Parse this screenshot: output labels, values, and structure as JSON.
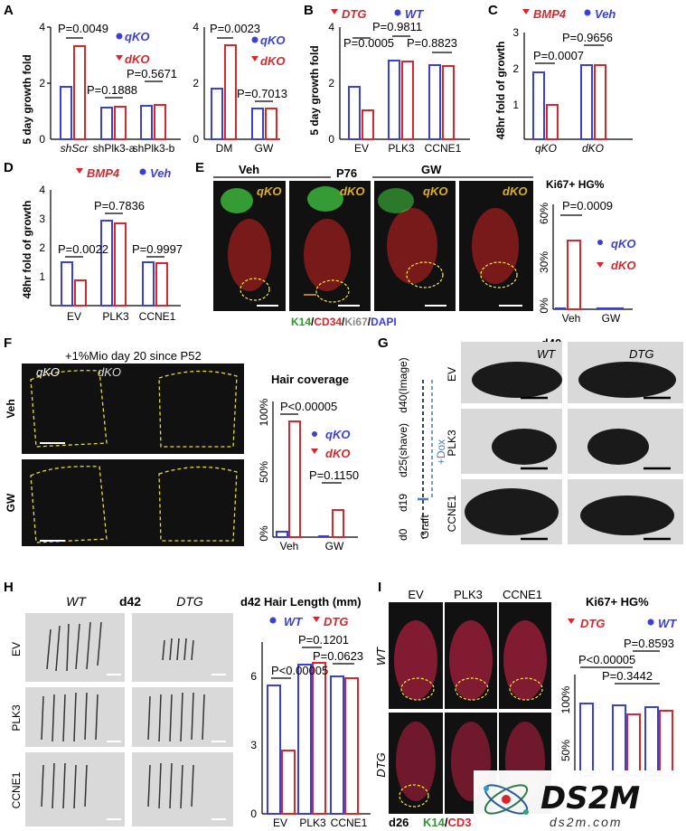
{
  "panels": {
    "A": {
      "label": "A",
      "ylabel": "5 day growth fold",
      "left": {
        "categories": [
          "shScr",
          "shPlk3-a",
          "shPlk3-b"
        ],
        "pvals": [
          "P=0.0049",
          "P=0.1888",
          "P=0.5671"
        ]
      },
      "right": {
        "categories": [
          "DM",
          "GW"
        ],
        "pvals": [
          "P=0.0023",
          "P=0.7013"
        ]
      },
      "legend": [
        "qKO",
        "dKO"
      ]
    },
    "B": {
      "label": "B",
      "ylabel": "5 day growth fold",
      "categories": [
        "EV",
        "PLK3",
        "CCNE1"
      ],
      "pvals": [
        "P=0.0005",
        "P=0.9811",
        "P=0.8823"
      ],
      "legend": [
        "DTG",
        "WT"
      ]
    },
    "C": {
      "label": "C",
      "ylabel": "48hr fold of growth",
      "categories": [
        "qKO",
        "dKO"
      ],
      "pvals": [
        "P=0.0007",
        "P=0.9656"
      ],
      "legend": [
        "BMP4",
        "Veh"
      ]
    },
    "D": {
      "label": "D",
      "ylabel": "48hr fold of growth",
      "categories": [
        "EV",
        "PLK3",
        "CCNE1"
      ],
      "pvals": [
        "P=0.0022",
        "P=0.7836",
        "P=0.9997"
      ],
      "legend": [
        "BMP4",
        "Veh"
      ]
    },
    "E": {
      "label": "E",
      "groups": [
        "Veh",
        "GW"
      ],
      "age": "P76",
      "tile_labels": [
        "qKO",
        "dKO",
        "qKO",
        "dKO"
      ],
      "stain": {
        "k14": "K14",
        "cd34": "CD34",
        "ki67": "Ki67",
        "dapi": "DAPI"
      },
      "chart_title": "Ki67+ HG%",
      "pval": "P=0.0009",
      "yticks": [
        "60%",
        "30%",
        "0%"
      ],
      "categories": [
        "Veh",
        "GW"
      ],
      "legend": [
        "qKO",
        "dKO"
      ]
    },
    "F": {
      "label": "F",
      "title": "+1%Mio day 20 since P52",
      "col_labels": [
        "qKO",
        "dKO"
      ],
      "row_labels": [
        "Veh",
        "GW"
      ],
      "chart_title": "Hair coverage",
      "pvals": [
        "P<0.00005",
        "P=0.1150"
      ],
      "yticks": [
        "100%",
        "50%",
        "0%"
      ],
      "categories": [
        "Veh",
        "GW"
      ],
      "legend": [
        "qKO",
        "dKO"
      ]
    },
    "G": {
      "label": "G",
      "title": "d40",
      "col_labels": [
        "WT",
        "DTG"
      ],
      "row_labels": [
        "EV",
        "PLK3",
        "CCNE1"
      ],
      "timeline": [
        "d0",
        "d19",
        "d25(shave)",
        "d40(Image)"
      ],
      "graft": "Graft",
      "dox": "+Dox"
    },
    "H": {
      "label": "H",
      "title": "d42",
      "col_labels": [
        "WT",
        "DTG"
      ],
      "row_labels": [
        "EV",
        "PLK3",
        "CCNE1"
      ],
      "chart_title": "d42 Hair Length (mm)",
      "legend": [
        "WT",
        "DTG"
      ],
      "pvals": [
        "P<0.00005",
        "P=0.1201",
        "P=0.0623"
      ],
      "yticks": [
        "6",
        "3",
        "0"
      ],
      "categories": [
        "EV",
        "PLK3",
        "CCNE1"
      ]
    },
    "I": {
      "label": "I",
      "col_labels": [
        "EV",
        "PLK3",
        "CCNE1"
      ],
      "row_labels": [
        "WT",
        "DTG"
      ],
      "day": "d26",
      "stain": {
        "k14": "K14",
        "cd34": "CD3"
      },
      "chart_title": "Ki67+ HG%",
      "legend": [
        "DTG",
        "WT"
      ],
      "pvals": [
        "P<0.00005",
        "P=0.8593",
        "P=0.3442"
      ],
      "yticks": [
        "100%",
        "50%"
      ]
    }
  },
  "watermark": {
    "logo": "DS2M",
    "url": "ds2m.com"
  },
  "chart_data": [
    {
      "type": "bar",
      "title": "",
      "ylabel": "5 day growth fold",
      "categories": [
        "shScr",
        "shPlk3-a",
        "shPlk3-b"
      ],
      "ylim": [
        0,
        4
      ],
      "series": [
        {
          "name": "qKO",
          "values": [
            1.8,
            1.1,
            1.2
          ]
        },
        {
          "name": "dKO",
          "values": [
            3.3,
            1.15,
            1.25
          ]
        }
      ]
    },
    {
      "type": "bar",
      "title": "",
      "categories": [
        "DM",
        "GW"
      ],
      "ylim": [
        0,
        4
      ],
      "series": [
        {
          "name": "qKO",
          "values": [
            1.8,
            1.1
          ]
        },
        {
          "name": "dKO",
          "values": [
            3.35,
            1.1
          ]
        }
      ]
    },
    {
      "type": "bar",
      "title": "",
      "ylabel": "5 day growth fold",
      "categories": [
        "EV",
        "PLK3",
        "CCNE1"
      ],
      "ylim": [
        0,
        4
      ],
      "series": [
        {
          "name": "WT",
          "values": [
            1.9,
            2.85,
            2.7
          ]
        },
        {
          "name": "DTG",
          "values": [
            1.05,
            2.8,
            2.65
          ]
        }
      ]
    },
    {
      "type": "bar",
      "title": "",
      "ylabel": "48hr fold of growth",
      "categories": [
        "qKO",
        "dKO"
      ],
      "ylim": [
        0,
        3
      ],
      "series": [
        {
          "name": "Veh",
          "values": [
            1.9,
            2.1
          ]
        },
        {
          "name": "BMP4",
          "values": [
            1.0,
            2.1
          ]
        }
      ]
    },
    {
      "type": "bar",
      "title": "",
      "ylabel": "48hr fold of growth",
      "categories": [
        "EV",
        "PLK3",
        "CCNE1"
      ],
      "ylim": [
        0,
        4
      ],
      "series": [
        {
          "name": "Veh",
          "values": [
            1.7,
            3.1,
            1.7
          ]
        },
        {
          "name": "BMP4",
          "values": [
            1.1,
            3.0,
            1.65
          ]
        }
      ]
    },
    {
      "type": "bar",
      "title": "Ki67+ HG%",
      "categories": [
        "Veh",
        "GW"
      ],
      "ylim": [
        0,
        60
      ],
      "series": [
        {
          "name": "qKO",
          "values": [
            0,
            0
          ]
        },
        {
          "name": "dKO",
          "values": [
            38,
            0
          ]
        }
      ]
    },
    {
      "type": "bar",
      "title": "Hair coverage",
      "categories": [
        "Veh",
        "GW"
      ],
      "ylim": [
        0,
        100
      ],
      "series": [
        {
          "name": "qKO",
          "values": [
            5,
            0
          ]
        },
        {
          "name": "dKO",
          "values": [
            88,
            20
          ]
        }
      ]
    },
    {
      "type": "bar",
      "title": "d42 Hair Length (mm)",
      "categories": [
        "EV",
        "PLK3",
        "CCNE1"
      ],
      "ylim": [
        0,
        7
      ],
      "series": [
        {
          "name": "WT",
          "values": [
            5.6,
            6.5,
            6.0
          ]
        },
        {
          "name": "DTG",
          "values": [
            2.8,
            6.6,
            5.9
          ]
        }
      ]
    },
    {
      "type": "bar",
      "title": "Ki67+ HG%",
      "categories": [
        "EV",
        "PLK3",
        "CCNE1"
      ],
      "ylim": [
        0,
        100
      ],
      "series": [
        {
          "name": "WT",
          "values": [
            82,
            80,
            80
          ]
        },
        {
          "name": "DTG",
          "values": [
            0,
            74,
            78
          ]
        }
      ]
    }
  ]
}
